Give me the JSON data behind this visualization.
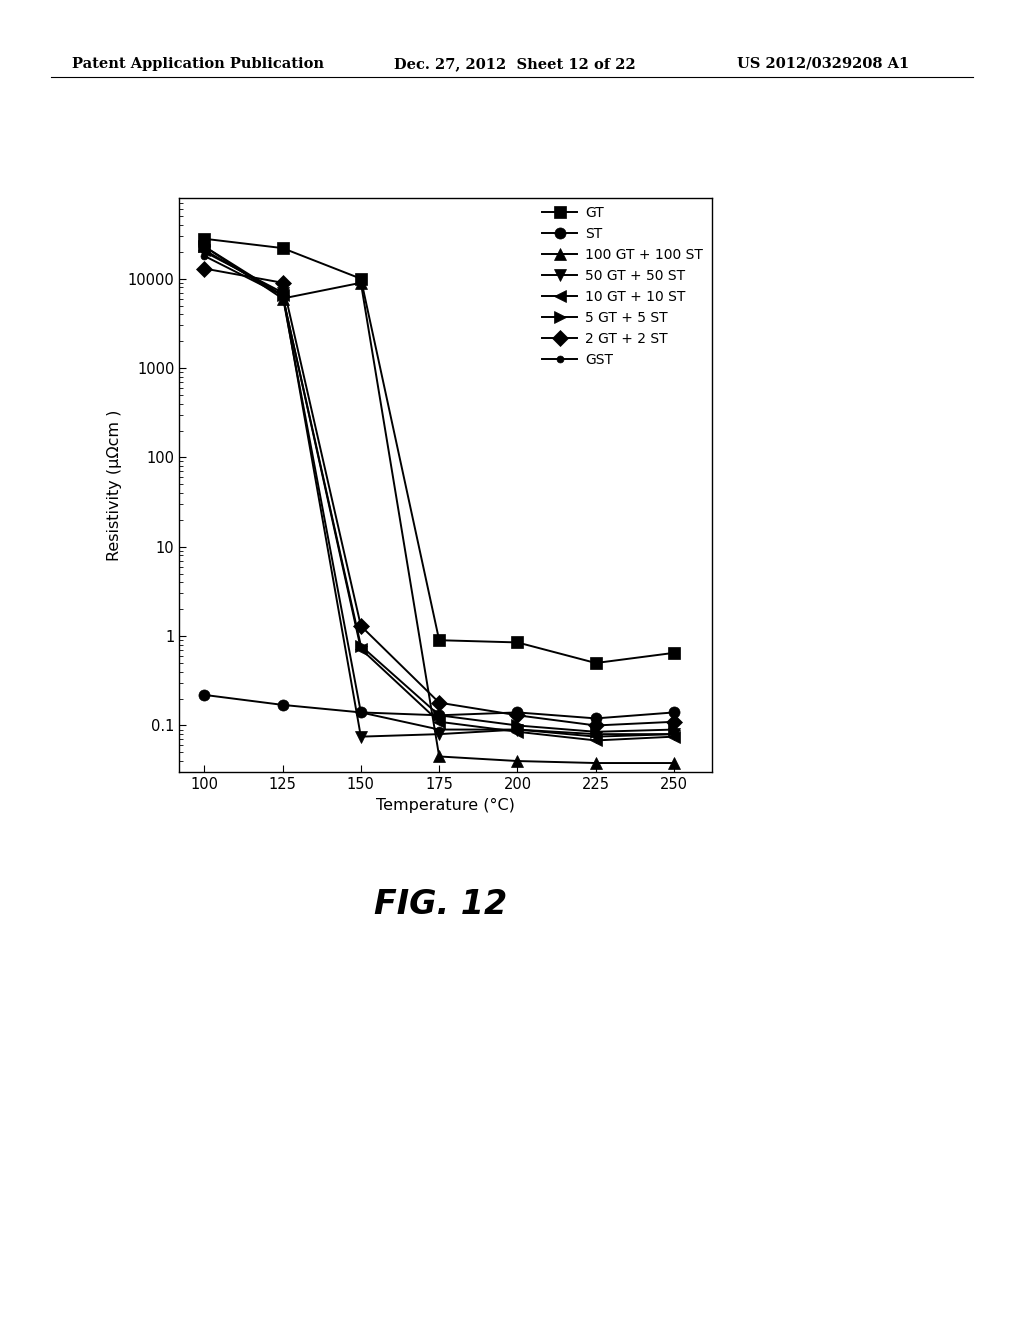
{
  "xlabel": "Temperature (°C)",
  "ylabel": "Resistivity (μΩcm )",
  "series": [
    {
      "label": "GT",
      "marker": "s",
      "x": [
        100,
        125,
        150,
        175,
        200,
        225,
        250
      ],
      "y": [
        28000,
        22000,
        10000,
        0.9,
        0.85,
        0.5,
        0.65
      ]
    },
    {
      "label": "ST",
      "marker": "o",
      "marker_large": true,
      "x": [
        100,
        125,
        150,
        175,
        200,
        225,
        250
      ],
      "y": [
        0.22,
        0.17,
        0.14,
        0.13,
        0.14,
        0.12,
        0.14
      ]
    },
    {
      "label": "100 GT + 100 ST",
      "marker": "^",
      "x": [
        100,
        125,
        150,
        175,
        200,
        225,
        250
      ],
      "y": [
        23000,
        6000,
        9000,
        0.045,
        0.04,
        0.038,
        0.038
      ]
    },
    {
      "label": "50 GT + 50 ST",
      "marker": "v",
      "x": [
        100,
        125,
        150,
        175,
        200,
        225,
        250
      ],
      "y": [
        20000,
        7000,
        0.075,
        0.08,
        0.09,
        0.075,
        0.08
      ]
    },
    {
      "label": "10 GT + 10 ST",
      "marker": "<",
      "x": [
        100,
        125,
        150,
        175,
        200,
        225,
        250
      ],
      "y": [
        21000,
        6500,
        0.72,
        0.11,
        0.085,
        0.068,
        0.075
      ]
    },
    {
      "label": "5 GT + 5 ST",
      "marker": ">",
      "x": [
        100,
        125,
        150,
        175,
        200,
        225,
        250
      ],
      "y": [
        23000,
        6500,
        0.78,
        0.13,
        0.1,
        0.085,
        0.09
      ]
    },
    {
      "label": "2 GT + 2 ST",
      "marker": "D",
      "x": [
        100,
        125,
        150,
        175,
        200,
        225,
        250
      ],
      "y": [
        13000,
        9000,
        1.3,
        0.18,
        0.13,
        0.1,
        0.11
      ]
    },
    {
      "label": "GST",
      "marker": "o",
      "marker_small": true,
      "x": [
        100,
        125,
        150,
        175,
        200,
        225,
        250
      ],
      "y": [
        18000,
        6500,
        0.14,
        0.09,
        0.09,
        0.08,
        0.08
      ]
    }
  ],
  "xlim": [
    92,
    262
  ],
  "ylim_min": 0.03,
  "ylim_max": 80000,
  "xticks": [
    100,
    125,
    150,
    175,
    200,
    225,
    250
  ],
  "yticks": [
    0.1,
    1,
    10,
    100,
    1000,
    10000
  ],
  "ytick_labels": [
    "0.1",
    "1",
    "10",
    "100",
    "1000",
    "10000"
  ],
  "background_color": "#ffffff",
  "fig_label": "FIG. 12",
  "header_left": "Patent Application Publication",
  "header_center": "Dec. 27, 2012  Sheet 12 of 22",
  "header_right": "US 2012/0329208 A1"
}
